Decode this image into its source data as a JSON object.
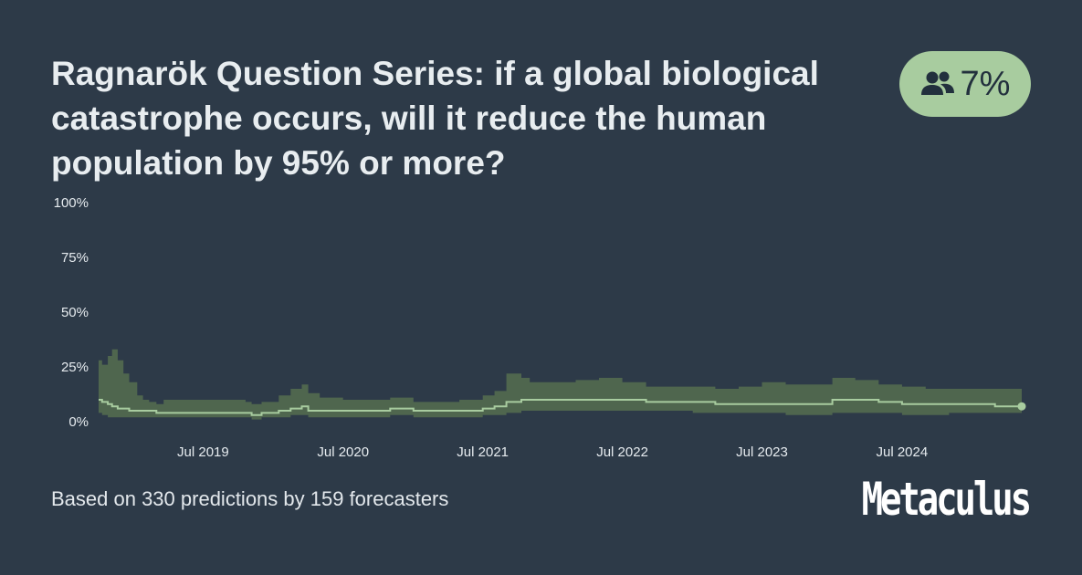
{
  "title": "Ragnarök Question Series: if a global biological catastrophe occurs, will it reduce the human population by 95% or more?",
  "badge": {
    "icon": "users-icon",
    "value": "7%"
  },
  "footer": {
    "summary": "Based on 330 predictions by 159 forecasters"
  },
  "brand": {
    "name": "Metaculus"
  },
  "colors": {
    "background": "#2d3a48",
    "band": "#51684f",
    "line": "#a8cc9f",
    "badge": "#a8cc9f"
  },
  "chart_data": {
    "type": "area",
    "title": "",
    "xlabel": "",
    "ylabel": "",
    "ylim": [
      0,
      100
    ],
    "y_unit": "%",
    "y_ticks": [
      "100%",
      "75%",
      "50%",
      "25%",
      "0%"
    ],
    "y_tick_values": [
      100,
      75,
      50,
      25,
      0
    ],
    "x_ticks": [
      "Jul 2019",
      "Jul 2020",
      "Jul 2021",
      "Jul 2022",
      "Jul 2023",
      "Jul 2024"
    ],
    "x_tick_dates": [
      "2019-07-01",
      "2020-07-01",
      "2021-07-01",
      "2022-07-01",
      "2023-07-01",
      "2024-07-01"
    ],
    "xlim": [
      "2018-10-01",
      "2025-05-10"
    ],
    "grid": false,
    "series": [
      {
        "name": "",
        "dates": [
          "2018-10-01",
          "2018-10-10",
          "2018-10-25",
          "2018-11-05",
          "2018-11-20",
          "2018-12-05",
          "2018-12-20",
          "2019-01-10",
          "2019-01-25",
          "2019-02-10",
          "2019-03-01",
          "2019-03-20",
          "2019-05-01",
          "2019-07-01",
          "2019-09-01",
          "2019-10-20",
          "2019-11-05",
          "2019-12-01",
          "2020-01-15",
          "2020-02-15",
          "2020-03-15",
          "2020-04-01",
          "2020-05-01",
          "2020-07-01",
          "2020-09-01",
          "2020-11-01",
          "2021-01-01",
          "2021-03-01",
          "2021-05-01",
          "2021-07-01",
          "2021-08-01",
          "2021-09-01",
          "2021-10-10",
          "2021-11-01",
          "2022-01-01",
          "2022-03-01",
          "2022-05-01",
          "2022-07-01",
          "2022-09-01",
          "2022-11-01",
          "2023-01-01",
          "2023-03-01",
          "2023-05-01",
          "2023-07-01",
          "2023-09-01",
          "2023-11-01",
          "2024-01-01",
          "2024-03-01",
          "2024-05-01",
          "2024-07-01",
          "2024-09-01",
          "2024-11-01",
          "2025-01-01",
          "2025-03-01",
          "2025-05-10"
        ],
        "median": [
          10,
          9,
          8,
          7,
          6,
          6,
          5,
          5,
          5,
          5,
          4,
          4,
          4,
          4,
          4,
          4,
          3,
          4,
          5,
          6,
          7,
          5,
          5,
          5,
          5,
          6,
          5,
          5,
          5,
          6,
          7,
          9,
          10,
          10,
          10,
          10,
          10,
          10,
          9,
          9,
          9,
          8,
          8,
          8,
          8,
          8,
          10,
          10,
          9,
          8,
          8,
          8,
          8,
          7,
          7
        ],
        "lower": [
          4,
          3,
          2,
          2,
          2,
          2,
          2,
          2,
          2,
          2,
          2,
          2,
          2,
          2,
          2,
          2,
          1,
          2,
          2,
          3,
          3,
          2,
          2,
          2,
          2,
          3,
          2,
          2,
          2,
          3,
          3,
          4,
          5,
          5,
          5,
          5,
          5,
          5,
          5,
          5,
          4,
          4,
          4,
          4,
          3,
          3,
          4,
          4,
          4,
          3,
          3,
          4,
          4,
          4,
          4
        ],
        "upper": [
          28,
          26,
          30,
          33,
          28,
          22,
          18,
          12,
          10,
          9,
          8,
          10,
          10,
          10,
          10,
          9,
          8,
          9,
          12,
          15,
          17,
          13,
          11,
          10,
          10,
          11,
          9,
          9,
          10,
          12,
          14,
          22,
          20,
          18,
          18,
          19,
          20,
          18,
          16,
          16,
          16,
          15,
          16,
          18,
          17,
          17,
          20,
          19,
          17,
          16,
          15,
          15,
          15,
          15,
          15
        ]
      }
    ]
  }
}
